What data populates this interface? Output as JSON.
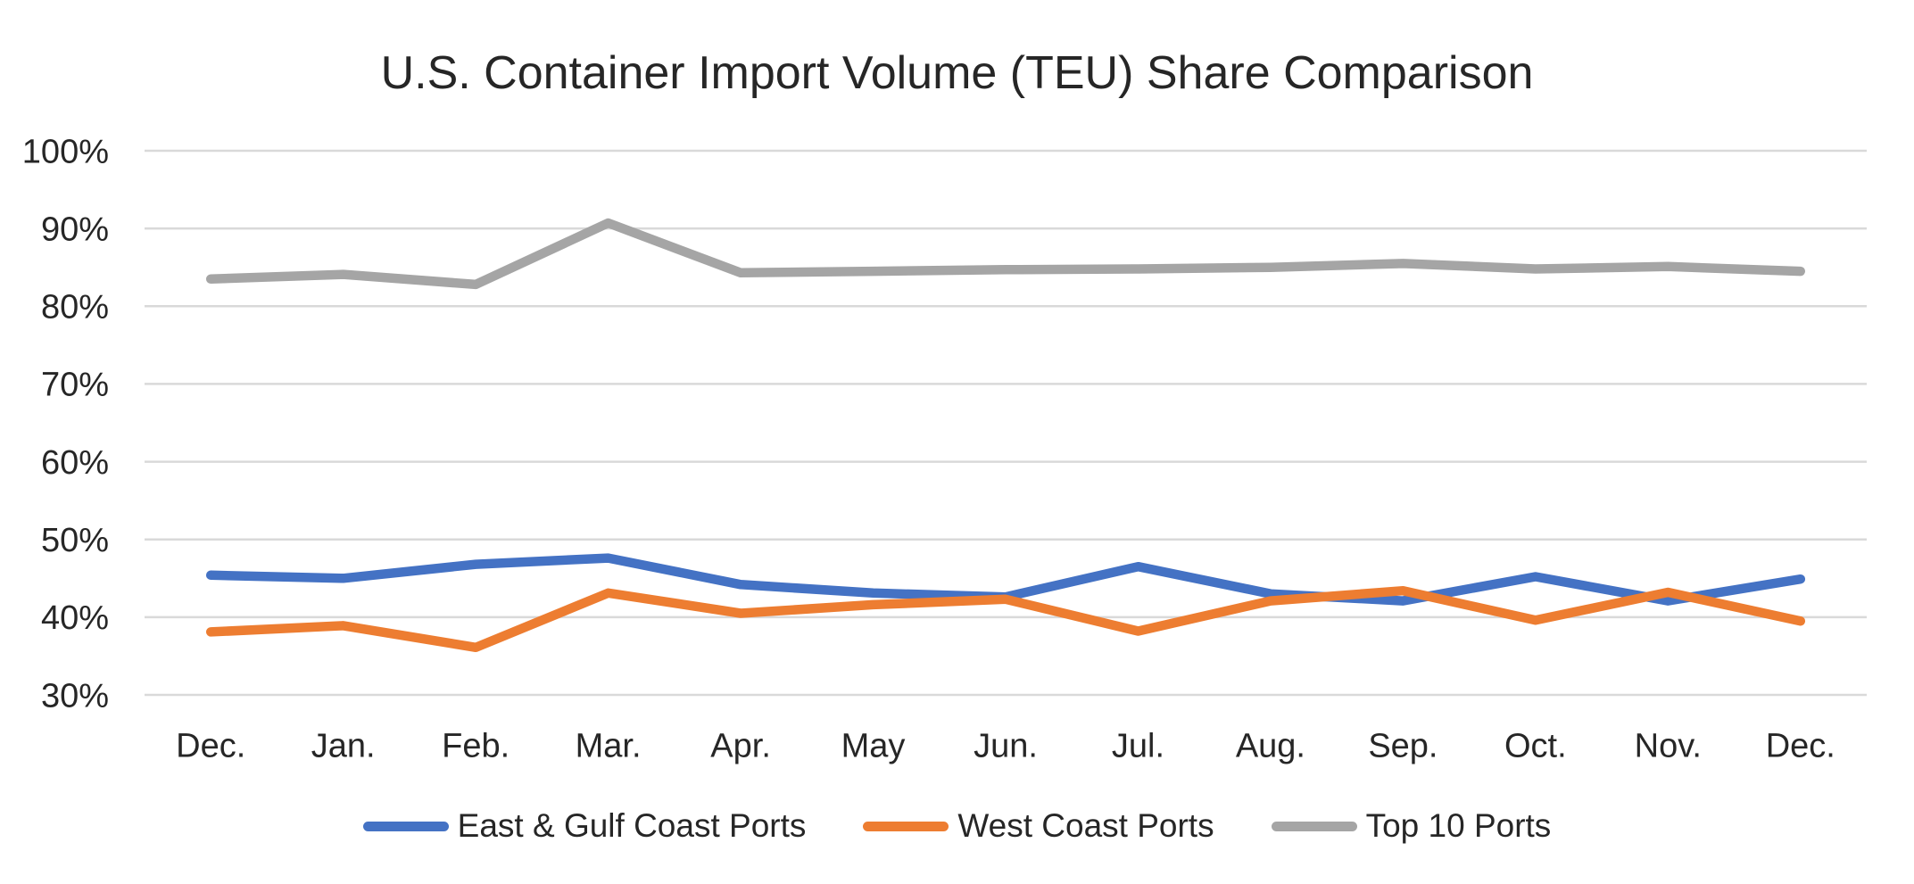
{
  "chart_data": {
    "type": "line",
    "title": "U.S. Container Import Volume (TEU) Share Comparison",
    "categories": [
      "Dec.",
      "Jan.",
      "Feb.",
      "Mar.",
      "Apr.",
      "May",
      "Jun.",
      "Jul.",
      "Aug.",
      "Sep.",
      "Oct.",
      "Nov.",
      "Dec."
    ],
    "series": [
      {
        "name": "East & Gulf Coast Ports",
        "color": "#4472C4",
        "values": [
          45.4,
          45.0,
          46.8,
          47.6,
          44.2,
          43.1,
          42.6,
          46.5,
          43.0,
          42.1,
          45.2,
          42.1,
          44.9
        ]
      },
      {
        "name": "West Coast Ports",
        "color": "#ED7D31",
        "values": [
          38.1,
          38.9,
          36.1,
          43.1,
          40.5,
          41.6,
          42.3,
          38.2,
          42.1,
          43.4,
          39.6,
          43.2,
          39.5
        ]
      },
      {
        "name": "Top 10 Ports",
        "color": "#A5A5A5",
        "values": [
          83.5,
          84.1,
          82.8,
          90.7,
          84.3,
          84.5,
          84.7,
          84.8,
          85.0,
          85.5,
          84.8,
          85.1,
          84.5
        ]
      }
    ],
    "y_axis": {
      "min": 30,
      "max": 100,
      "tick_step": 10,
      "tick_values": [
        100,
        90,
        80,
        70,
        60,
        50,
        40,
        30
      ],
      "tick_labels": [
        "100%",
        "90%",
        "80%",
        "70%",
        "60%",
        "50%",
        "40%",
        "30%"
      ]
    },
    "unit": "%",
    "grid": true,
    "legend_position": "bottom",
    "styles": {
      "background": "#FFFFFF",
      "gridline_color": "#D9D9D9",
      "text_color": "#262626"
    }
  }
}
